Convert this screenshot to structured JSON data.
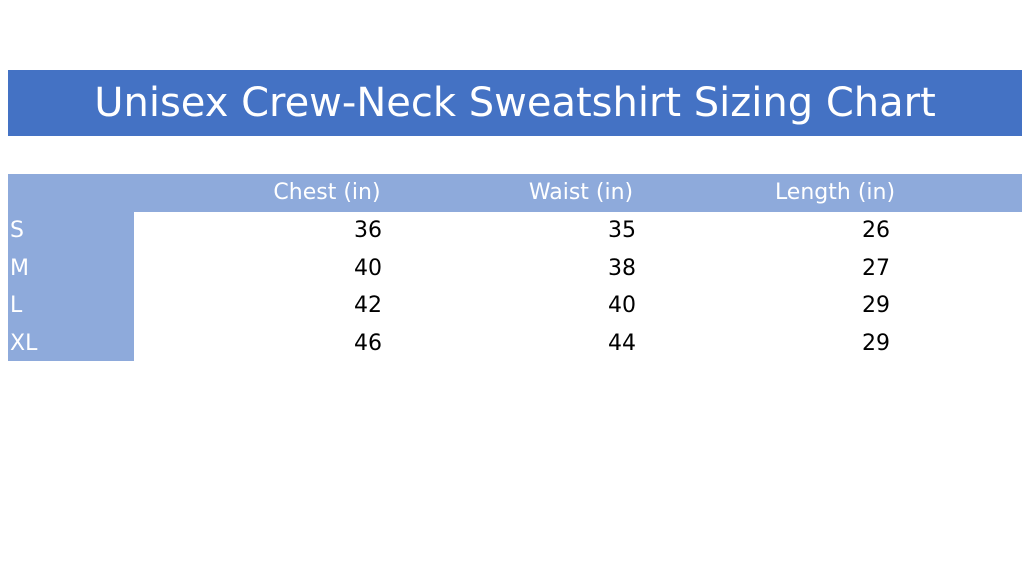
{
  "title": "Unisex Crew-Neck Sweatshirt Sizing Chart",
  "table": {
    "columns": [
      "Chest (in)",
      "Waist (in)",
      "Length (in)"
    ],
    "rows": [
      [
        "S",
        36,
        35,
        26
      ],
      [
        "M",
        40,
        38,
        27
      ],
      [
        "L",
        42,
        40,
        29
      ],
      [
        "XL",
        46,
        44,
        29
      ]
    ]
  }
}
